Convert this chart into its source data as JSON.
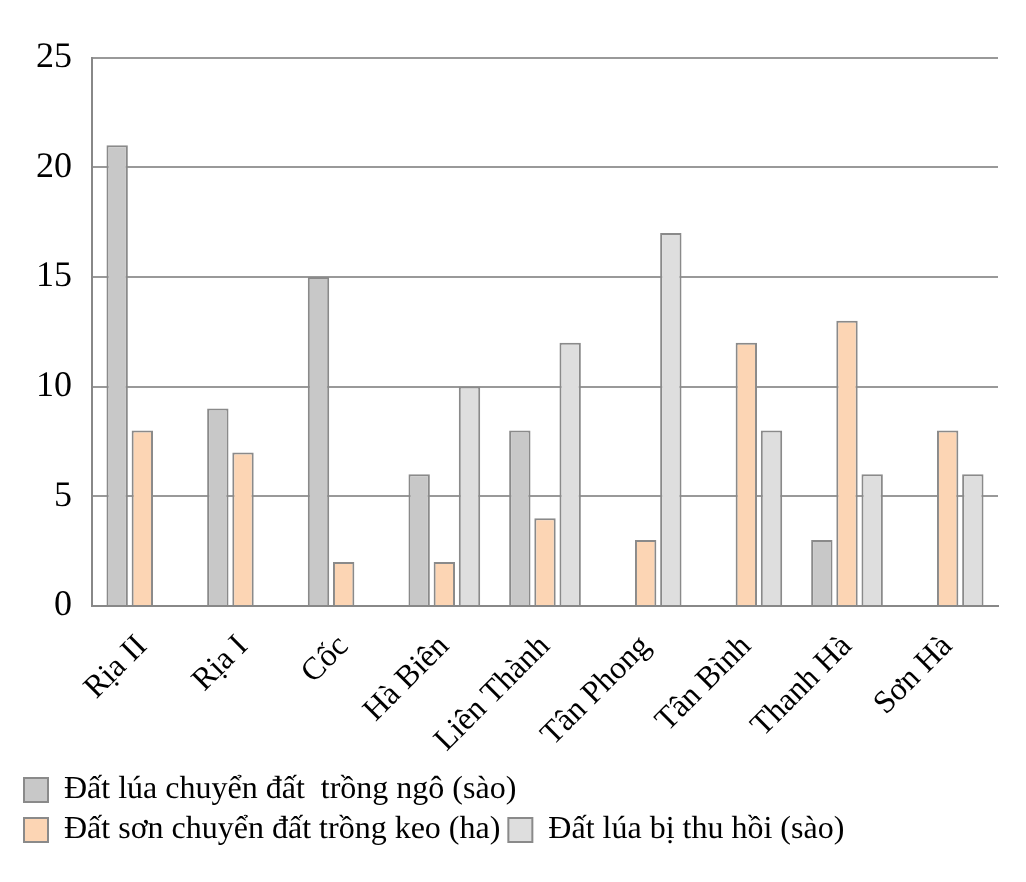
{
  "chart_data": {
    "type": "bar",
    "categories": [
      "Rịa II",
      "Rịa I",
      "Cốc",
      "Hà Biên",
      "Liên Thành",
      "Tân Phong",
      "Tân Bình",
      "Thanh Hà",
      "Sơn Hà"
    ],
    "series": [
      {
        "name": "Đất lúa chuyển đất  trồng ngô (sào)",
        "color": "#c8c8c8",
        "values": [
          21,
          9,
          15,
          6,
          8,
          null,
          null,
          3,
          null
        ]
      },
      {
        "name": "Đất sơn chuyển đất trồng keo (ha)",
        "color": "#fcd5b4",
        "values": [
          8,
          7,
          2,
          2,
          4,
          3,
          12,
          13,
          8
        ]
      },
      {
        "name": "Đất lúa bị thu hồi (sào)",
        "color": "#dedede",
        "values": [
          null,
          null,
          null,
          10,
          12,
          17,
          8,
          6,
          6
        ]
      }
    ],
    "ylim": [
      0,
      25
    ],
    "yticks": [
      0,
      5,
      10,
      15,
      20,
      25
    ],
    "grid": "y",
    "legend": "bottom"
  }
}
